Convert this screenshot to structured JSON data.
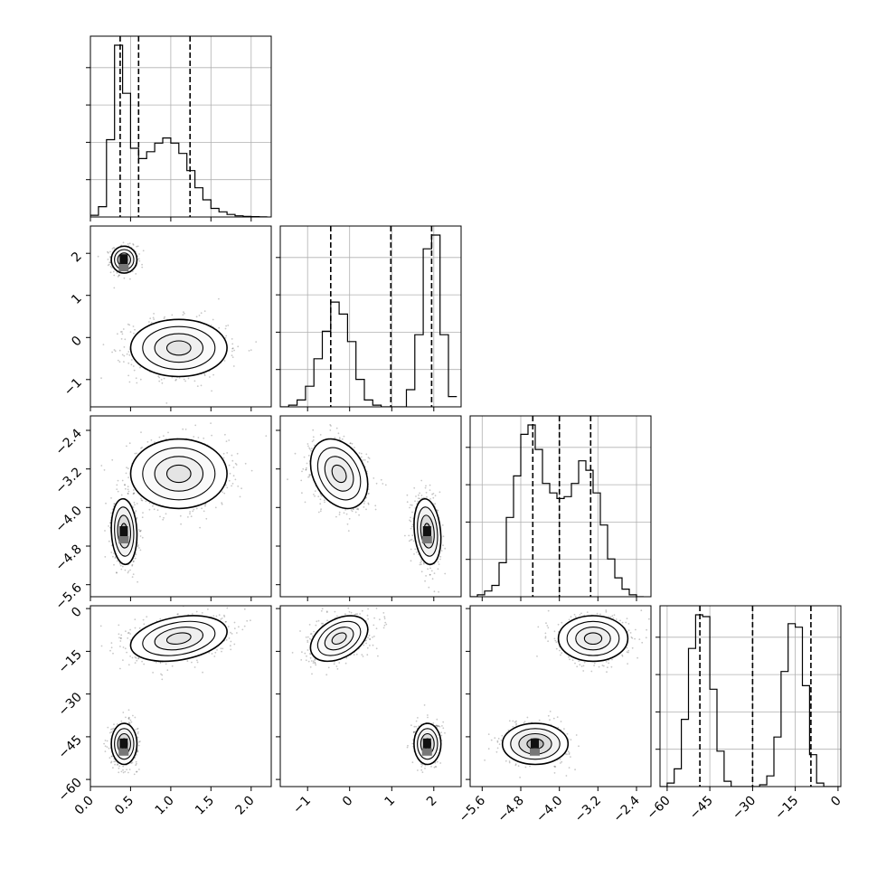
{
  "chart_data": {
    "type": "corner",
    "parameters": [
      {
        "ylabel_text": "",
        "xlabel_text": "",
        "range": [
          0.0,
          2.25
        ],
        "ticks": [
          0.0,
          0.5,
          1.0,
          1.5,
          2.0
        ],
        "tick_labels": [
          "0.0",
          "0.5",
          "1.0",
          "1.5",
          "2.0"
        ],
        "quantiles": [
          0.37,
          0.6,
          1.24
        ]
      },
      {
        "range": [
          -1.65,
          2.65
        ],
        "ticks": [
          -1,
          0,
          1,
          2
        ],
        "tick_labels": [
          "−1",
          "0",
          "1",
          "2"
        ],
        "quantiles": [
          -0.45,
          0.98,
          1.95
        ]
      },
      {
        "range": [
          -5.85,
          -2.1
        ],
        "ticks": [
          -5.6,
          -4.8,
          -4.0,
          -3.2,
          -2.4
        ],
        "tick_labels": [
          "−5.6",
          "−4.8",
          "−4.0",
          "−3.2",
          "−2.4"
        ],
        "quantiles": [
          -4.55,
          -4.0,
          -3.35
        ]
      },
      {
        "range": [
          -62.5,
          1.0
        ],
        "ticks": [
          -60,
          -45,
          -30,
          -15,
          0
        ],
        "tick_labels": [
          "−60",
          "−45",
          "−30",
          "−15",
          "0"
        ],
        "quantiles": [
          -48.5,
          -30.0,
          -9.5
        ]
      }
    ],
    "histograms": [
      {
        "param": 0,
        "bins": [
          0.0,
          0.1,
          0.2,
          0.3,
          0.4,
          0.5,
          0.6,
          0.7,
          0.8,
          0.9,
          1.0,
          1.1,
          1.2,
          1.3,
          1.4,
          1.5,
          1.6,
          1.7,
          1.8,
          1.9,
          2.0,
          2.1,
          2.2
        ],
        "counts": [
          0.01,
          0.06,
          0.45,
          1.0,
          0.72,
          0.4,
          0.34,
          0.38,
          0.43,
          0.46,
          0.43,
          0.37,
          0.27,
          0.17,
          0.1,
          0.05,
          0.03,
          0.015,
          0.007,
          0.003,
          0.002,
          0.001
        ]
      },
      {
        "param": 1,
        "bins": [
          -1.65,
          -1.45,
          -1.25,
          -1.05,
          -0.85,
          -0.65,
          -0.45,
          -0.25,
          -0.05,
          0.15,
          0.35,
          0.55,
          0.75,
          0.95,
          1.15,
          1.35,
          1.55,
          1.75,
          1.95,
          2.15,
          2.35,
          2.55
        ],
        "counts": [
          0.0,
          0.01,
          0.04,
          0.12,
          0.28,
          0.44,
          0.61,
          0.54,
          0.38,
          0.16,
          0.04,
          0.01,
          0.0,
          0.0,
          0.0,
          0.1,
          0.42,
          0.92,
          1.0,
          0.42,
          0.06
        ]
      },
      {
        "param": 2,
        "bins": [
          -5.85,
          -5.7,
          -5.55,
          -5.4,
          -5.25,
          -5.1,
          -4.95,
          -4.8,
          -4.65,
          -4.5,
          -4.35,
          -4.2,
          -4.05,
          -3.9,
          -3.75,
          -3.6,
          -3.45,
          -3.3,
          -3.15,
          -3.0,
          -2.85,
          -2.7,
          -2.55,
          -2.4,
          -2.25
        ],
        "counts": [
          0.0,
          0.01,
          0.03,
          0.06,
          0.18,
          0.42,
          0.64,
          0.86,
          0.91,
          0.78,
          0.6,
          0.55,
          0.52,
          0.53,
          0.6,
          0.72,
          0.67,
          0.55,
          0.38,
          0.2,
          0.1,
          0.04,
          0.01,
          0.0
        ]
      },
      {
        "param": 3,
        "bins": [
          -62.5,
          -60.0,
          -57.5,
          -55.0,
          -52.5,
          -50.0,
          -47.5,
          -45.0,
          -42.5,
          -40.0,
          -37.5,
          -35.0,
          -32.5,
          -30.0,
          -27.5,
          -25.0,
          -22.5,
          -20.0,
          -17.5,
          -15.0,
          -12.5,
          -10.0,
          -7.5,
          -5.0,
          -2.5,
          0.0,
          1.0
        ],
        "counts": [
          0.0,
          0.02,
          0.1,
          0.38,
          0.78,
          0.97,
          0.96,
          0.55,
          0.2,
          0.03,
          0.0,
          0.0,
          0.0,
          0.0,
          0.01,
          0.06,
          0.28,
          0.65,
          0.92,
          0.9,
          0.57,
          0.18,
          0.02,
          0.0,
          0.0,
          0.0
        ]
      }
    ],
    "modes": [
      {
        "means": [
          0.42,
          1.85,
          -4.5,
          -47.5
        ],
        "sds": [
          0.08,
          0.16,
          0.34,
          3.6
        ],
        "weight": 0.42
      },
      {
        "means": [
          1.1,
          -0.25,
          -3.3,
          -10.5
        ],
        "sds": [
          0.3,
          0.34,
          0.36,
          4.0
        ],
        "weight": 0.58
      }
    ],
    "correlations": {
      "mode0": [
        [
          0,
          2,
          -0.1
        ],
        [
          2,
          3,
          0.0
        ],
        [
          0,
          1,
          0.0
        ],
        [
          0,
          3,
          0.0
        ],
        [
          1,
          2,
          -0.2
        ],
        [
          1,
          3,
          0.0
        ]
      ],
      "mode1": [
        [
          0,
          3,
          0.3
        ],
        [
          1,
          3,
          0.4
        ],
        [
          2,
          3,
          0.0
        ],
        [
          0,
          2,
          0.0
        ],
        [
          1,
          2,
          -0.3
        ],
        [
          0,
          1,
          0.0
        ]
      ]
    },
    "grid": true,
    "quantile_style": "dashed"
  }
}
